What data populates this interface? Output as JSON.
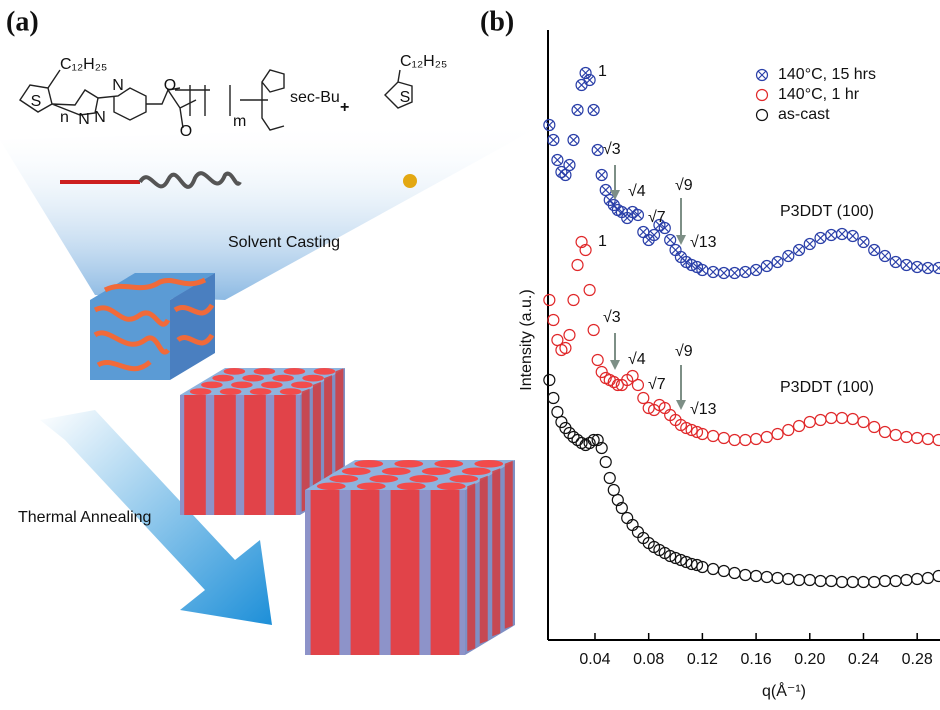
{
  "panel_a": {
    "label": "(a)",
    "substituent": "C₁₂H₂₅",
    "repeat_n": "n",
    "repeat_m": "m",
    "end_group": "sec-Bu",
    "plus": "+",
    "monomer_substituent": "C₁₂H₂₅",
    "atoms": [
      "S",
      "N",
      "N",
      "N",
      "O",
      "O",
      "S"
    ],
    "step1": "Solvent Casting",
    "step2": "Thermal Annealing"
  },
  "chart_data": {
    "type": "scatter",
    "panel_label": "(b)",
    "xlabel": "q(Å⁻¹)",
    "ylabel": "Intensity (a.u.)",
    "xlim": [
      0.005,
      0.297
    ],
    "ylim": [
      0,
      61
    ],
    "xticks": [
      0.04,
      0.08,
      0.12,
      0.16,
      {
        "value": 0.2,
        "label": "0.20"
      },
      0.24,
      0.28
    ],
    "legend": "upper right",
    "x": [
      0.006,
      0.009,
      0.012,
      0.015,
      0.018,
      0.021,
      0.024,
      0.027,
      0.03,
      0.033,
      0.036,
      0.039,
      0.042,
      0.045,
      0.048,
      0.051,
      0.054,
      0.057,
      0.06,
      0.064,
      0.068,
      0.072,
      0.076,
      0.08,
      0.084,
      0.088,
      0.092,
      0.096,
      0.1,
      0.104,
      0.108,
      0.112,
      0.116,
      0.12,
      0.128,
      0.136,
      0.144,
      0.152,
      0.16,
      0.168,
      0.176,
      0.184,
      0.192,
      0.2,
      0.208,
      0.216,
      0.224,
      0.232,
      0.24,
      0.248,
      0.256,
      0.264,
      0.272,
      0.28,
      0.288,
      0.296
    ],
    "series": [
      {
        "name": "140°C, 15 hrs",
        "color": "#2a3fa8",
        "marker": "circle-x",
        "values": [
          51.5,
          50,
          48,
          46.8,
          46.5,
          47.5,
          50,
          53,
          55.5,
          56.7,
          56,
          53,
          49,
          46.5,
          45,
          44,
          43.5,
          43,
          42.8,
          42.2,
          42.8,
          42.5,
          40.8,
          40,
          40.5,
          41.5,
          41.2,
          40,
          39,
          38.3,
          37.8,
          37.5,
          37.3,
          37,
          36.8,
          36.7,
          36.7,
          36.8,
          37,
          37.4,
          37.8,
          38.4,
          39,
          39.6,
          40.2,
          40.5,
          40.6,
          40.4,
          39.8,
          39,
          38.4,
          37.8,
          37.5,
          37.3,
          37.2,
          37.2
        ]
      },
      {
        "name": "140°C, 1 hr",
        "color": "#e0282a",
        "marker": "circle",
        "values": [
          34,
          32,
          30,
          29,
          29.2,
          30.5,
          34,
          37.5,
          39.8,
          39,
          35,
          31,
          28,
          26.8,
          26.2,
          26,
          25.8,
          25.5,
          25.5,
          26,
          26.4,
          25.5,
          24.2,
          23.2,
          23,
          23.5,
          23.2,
          22.5,
          22,
          21.5,
          21.2,
          21,
          20.8,
          20.6,
          20.4,
          20.2,
          20,
          20,
          20.1,
          20.3,
          20.6,
          21,
          21.4,
          21.8,
          22,
          22.2,
          22.2,
          22.1,
          21.8,
          21.3,
          20.8,
          20.5,
          20.3,
          20.2,
          20.1,
          20
        ]
      },
      {
        "name": "as-cast",
        "color": "#111111",
        "marker": "circle",
        "values": [
          26,
          24.2,
          22.8,
          21.8,
          21.2,
          20.7,
          20.3,
          20,
          19.7,
          19.5,
          19.7,
          20,
          20,
          19.2,
          17.8,
          16.2,
          15,
          14,
          13.2,
          12.2,
          11.5,
          10.8,
          10.2,
          9.7,
          9.3,
          9,
          8.7,
          8.4,
          8.2,
          8,
          7.8,
          7.6,
          7.5,
          7.3,
          7.1,
          6.9,
          6.7,
          6.5,
          6.4,
          6.3,
          6.2,
          6.1,
          6,
          6,
          5.9,
          5.9,
          5.8,
          5.8,
          5.8,
          5.8,
          5.9,
          5.9,
          6,
          6.1,
          6.2,
          6.4
        ]
      }
    ],
    "annotations": [
      "1",
      "√3",
      "√4",
      "√9",
      "√7",
      "√13",
      "P3DDT (100)",
      "1",
      "√3",
      "√4",
      "√9",
      "√7",
      "√13",
      "P3DDT (100)"
    ]
  }
}
